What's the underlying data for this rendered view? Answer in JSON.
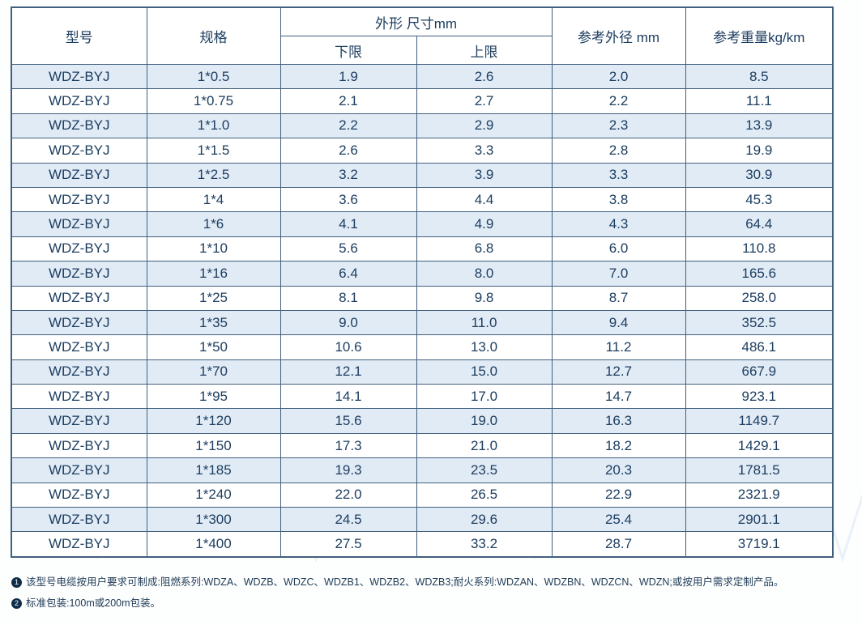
{
  "table": {
    "headers": {
      "model": "型号",
      "spec": "规格",
      "dimension_group": "外形 尺寸mm",
      "lower": "下限",
      "upper": "上限",
      "ref_od": "参考外径 mm",
      "ref_weight": "参考重量kg/km"
    },
    "rows": [
      {
        "model": "WDZ-BYJ",
        "spec": "1*0.5",
        "lower": "1.9",
        "upper": "2.6",
        "od": "2.0",
        "weight": "8.5"
      },
      {
        "model": "WDZ-BYJ",
        "spec": "1*0.75",
        "lower": "2.1",
        "upper": "2.7",
        "od": "2.2",
        "weight": "11.1"
      },
      {
        "model": "WDZ-BYJ",
        "spec": "1*1.0",
        "lower": "2.2",
        "upper": "2.9",
        "od": "2.3",
        "weight": "13.9"
      },
      {
        "model": "WDZ-BYJ",
        "spec": "1*1.5",
        "lower": "2.6",
        "upper": "3.3",
        "od": "2.8",
        "weight": "19.9"
      },
      {
        "model": "WDZ-BYJ",
        "spec": "1*2.5",
        "lower": "3.2",
        "upper": "3.9",
        "od": "3.3",
        "weight": "30.9"
      },
      {
        "model": "WDZ-BYJ",
        "spec": "1*4",
        "lower": "3.6",
        "upper": "4.4",
        "od": "3.8",
        "weight": "45.3"
      },
      {
        "model": "WDZ-BYJ",
        "spec": "1*6",
        "lower": "4.1",
        "upper": "4.9",
        "od": "4.3",
        "weight": "64.4"
      },
      {
        "model": "WDZ-BYJ",
        "spec": "1*10",
        "lower": "5.6",
        "upper": "6.8",
        "od": "6.0",
        "weight": "110.8"
      },
      {
        "model": "WDZ-BYJ",
        "spec": "1*16",
        "lower": "6.4",
        "upper": "8.0",
        "od": "7.0",
        "weight": "165.6"
      },
      {
        "model": "WDZ-BYJ",
        "spec": "1*25",
        "lower": "8.1",
        "upper": "9.8",
        "od": "8.7",
        "weight": "258.0"
      },
      {
        "model": "WDZ-BYJ",
        "spec": "1*35",
        "lower": "9.0",
        "upper": "11.0",
        "od": "9.4",
        "weight": "352.5"
      },
      {
        "model": "WDZ-BYJ",
        "spec": "1*50",
        "lower": "10.6",
        "upper": "13.0",
        "od": "11.2",
        "weight": "486.1"
      },
      {
        "model": "WDZ-BYJ",
        "spec": "1*70",
        "lower": "12.1",
        "upper": "15.0",
        "od": "12.7",
        "weight": "667.9"
      },
      {
        "model": "WDZ-BYJ",
        "spec": "1*95",
        "lower": "14.1",
        "upper": "17.0",
        "od": "14.7",
        "weight": "923.1"
      },
      {
        "model": "WDZ-BYJ",
        "spec": "1*120",
        "lower": "15.6",
        "upper": "19.0",
        "od": "16.3",
        "weight": "1149.7"
      },
      {
        "model": "WDZ-BYJ",
        "spec": "1*150",
        "lower": "17.3",
        "upper": "21.0",
        "od": "18.2",
        "weight": "1429.1"
      },
      {
        "model": "WDZ-BYJ",
        "spec": "1*185",
        "lower": "19.3",
        "upper": "23.5",
        "od": "20.3",
        "weight": "1781.5"
      },
      {
        "model": "WDZ-BYJ",
        "spec": "1*240",
        "lower": "22.0",
        "upper": "26.5",
        "od": "22.9",
        "weight": "2321.9"
      },
      {
        "model": "WDZ-BYJ",
        "spec": "1*300",
        "lower": "24.5",
        "upper": "29.6",
        "od": "25.4",
        "weight": "2901.1"
      },
      {
        "model": "WDZ-BYJ",
        "spec": "1*400",
        "lower": "27.5",
        "upper": "33.2",
        "od": "28.7",
        "weight": "3719.1"
      }
    ]
  },
  "notes": [
    {
      "marker": "1",
      "text": "该型号电缆按用户要求可制成:阻燃系列:WDZA、WDZB、WDZC、WDZB1、WDZB2、WDZB3;耐火系列:WDZAN、WDZBN、WDZCN、WDZN;或按用户需求定制产品。"
    },
    {
      "marker": "2",
      "text": "标准包装:100m或200m包装。"
    }
  ],
  "colors": {
    "text": "#1d3e60",
    "border": "#41607d",
    "stripe": "#e1ebf6",
    "row_white": "#ffffff",
    "note_marker_bg": "#0f2d49",
    "page_bg": "#fdfefe"
  }
}
